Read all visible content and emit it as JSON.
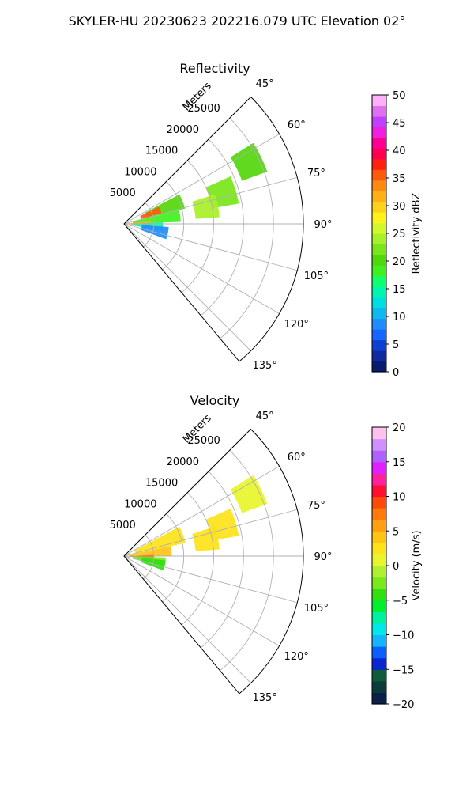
{
  "suptitle": "SKYLER-HU  20230623  202216.079 UTC Elevation 02°",
  "chart_data": [
    {
      "type": "heatmap",
      "subtype": "polar-sector-ppi",
      "title": "Reflectivity",
      "radial_label": "Meters",
      "theta_range_deg": [
        45,
        140
      ],
      "theta_ticks": [
        "45°",
        "60°",
        "75°",
        "90°",
        "105°",
        "120°",
        "135°"
      ],
      "theta_tick_values": [
        45,
        60,
        75,
        90,
        105,
        120,
        135
      ],
      "r_max": 30000,
      "r_ticks": [
        "5000",
        "10000",
        "15000",
        "20000",
        "25000"
      ],
      "r_tick_values": [
        5000,
        10000,
        15000,
        20000,
        25000
      ],
      "grid": true,
      "colorbar": {
        "label": "Reflectivity dBZ",
        "min": 0,
        "max": 50,
        "ticks": [
          "0",
          "5",
          "10",
          "15",
          "20",
          "25",
          "30",
          "35",
          "40",
          "45",
          "50"
        ],
        "tick_values": [
          0,
          5,
          10,
          15,
          20,
          25,
          30,
          35,
          40,
          45,
          50
        ]
      },
      "echoes": [
        {
          "theta": [
            58,
            70
          ],
          "r": [
            21000,
            25500
          ],
          "value": 20
        },
        {
          "theta": [
            66,
            80
          ],
          "r": [
            15000,
            19500
          ],
          "value": 22
        },
        {
          "theta": [
            72,
            86
          ],
          "r": [
            12000,
            16000
          ],
          "value": 24
        },
        {
          "theta": [
            62,
            76
          ],
          "r": [
            4000,
            10500
          ],
          "value": 20
        },
        {
          "theta": [
            64,
            74
          ],
          "r": [
            3000,
            6500
          ],
          "value": 36
        },
        {
          "theta": [
            76,
            88
          ],
          "r": [
            1500,
            9500
          ],
          "value": 18
        },
        {
          "theta": [
            84,
            95
          ],
          "r": [
            500,
            4500
          ],
          "value": 32
        },
        {
          "theta": [
            88,
            100
          ],
          "r": [
            1500,
            6500
          ],
          "value": 15
        },
        {
          "theta": [
            94,
            110
          ],
          "r": [
            3000,
            7500
          ],
          "value": 9
        }
      ]
    },
    {
      "type": "heatmap",
      "subtype": "polar-sector-ppi",
      "title": "Velocity",
      "radial_label": "Meters",
      "theta_range_deg": [
        45,
        140
      ],
      "theta_ticks": [
        "45°",
        "60°",
        "75°",
        "90°",
        "105°",
        "120°",
        "135°"
      ],
      "theta_tick_values": [
        45,
        60,
        75,
        90,
        105,
        120,
        135
      ],
      "r_max": 30000,
      "r_ticks": [
        "5000",
        "10000",
        "15000",
        "20000",
        "25000"
      ],
      "r_tick_values": [
        5000,
        10000,
        15000,
        20000,
        25000
      ],
      "grid": true,
      "colorbar": {
        "label": "Velocity (m/s)",
        "min": -20,
        "max": 20,
        "ticks": [
          "−20",
          "−15",
          "−10",
          "−5",
          "0",
          "5",
          "10",
          "15",
          "20"
        ],
        "tick_values": [
          -20,
          -15,
          -10,
          -5,
          0,
          5,
          10,
          15,
          20
        ]
      },
      "echoes": [
        {
          "theta": [
            58,
            70
          ],
          "r": [
            21000,
            25500
          ],
          "value": 1
        },
        {
          "theta": [
            66,
            80
          ],
          "r": [
            15000,
            19500
          ],
          "value": 3
        },
        {
          "theta": [
            72,
            86
          ],
          "r": [
            12000,
            16000
          ],
          "value": 2
        },
        {
          "theta": [
            62,
            78
          ],
          "r": [
            2000,
            10500
          ],
          "value": 3
        },
        {
          "theta": [
            78,
            90
          ],
          "r": [
            1000,
            8000
          ],
          "value": 4
        },
        {
          "theta": [
            88,
            96
          ],
          "r": [
            500,
            5000
          ],
          "value": 9
        },
        {
          "theta": [
            92,
            104
          ],
          "r": [
            1500,
            7000
          ],
          "value": -3
        },
        {
          "theta": [
            96,
            110
          ],
          "r": [
            3000,
            7000
          ],
          "value": -4
        }
      ]
    }
  ]
}
